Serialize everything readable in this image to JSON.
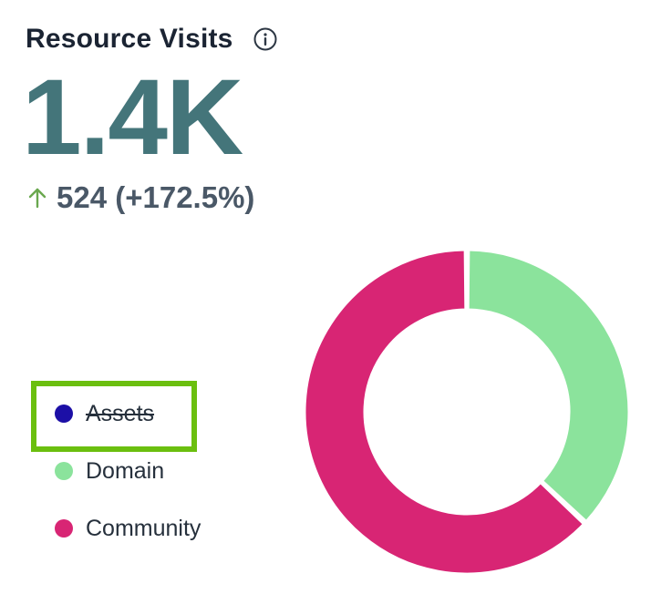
{
  "card": {
    "title": "Resource Visits",
    "info_icon": "info-icon",
    "total": "1.4K",
    "delta_icon": "arrow-up-icon",
    "delta_text": "524 (+172.5%)",
    "delta_color": "#6aa84f"
  },
  "legend": {
    "items": [
      {
        "label": "Assets",
        "color": "#1c0fa6",
        "hidden": true
      },
      {
        "label": "Domain",
        "color": "#8be39c",
        "hidden": false
      },
      {
        "label": "Community",
        "color": "#d82574",
        "hidden": false
      }
    ],
    "highlight_color": "#6bbf0f"
  },
  "chart_data": {
    "type": "pie",
    "variant": "donut",
    "categories": [
      "Domain",
      "Community"
    ],
    "values": [
      0.37,
      0.63
    ],
    "colors": [
      "#8be39c",
      "#d82574"
    ],
    "hidden_categories": [
      "Assets"
    ]
  }
}
